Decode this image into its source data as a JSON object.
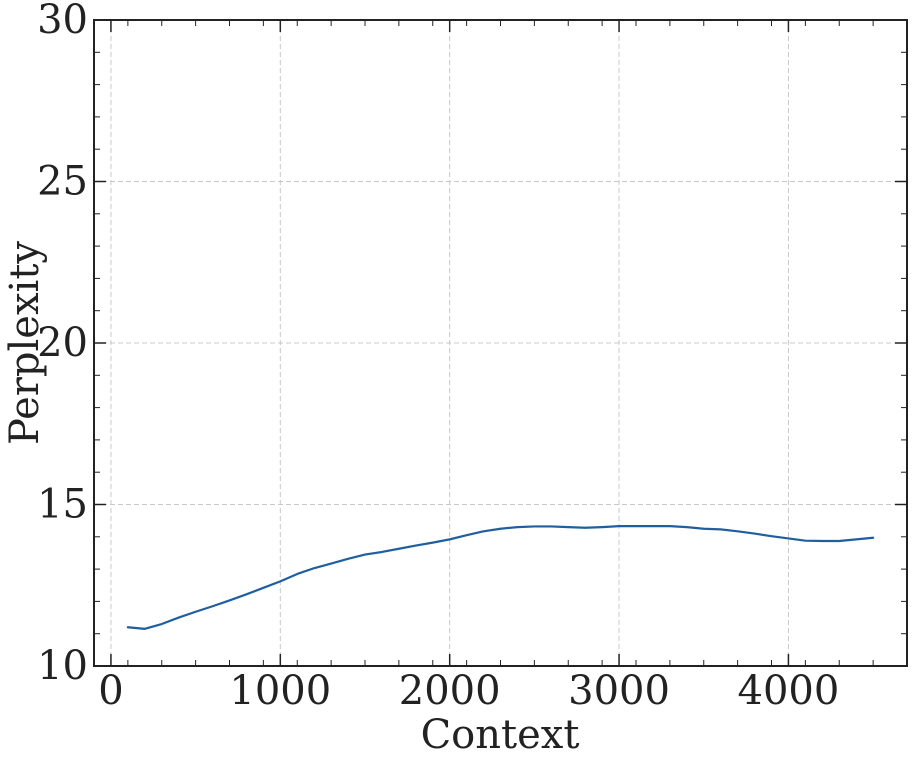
{
  "chart_data": {
    "type": "line",
    "xlabel": "Context",
    "ylabel": "Perplexity",
    "xlim": [
      -100,
      4700
    ],
    "ylim": [
      10,
      30
    ],
    "xticks": [
      0,
      1000,
      2000,
      3000,
      4000
    ],
    "yticks": [
      10,
      15,
      20,
      25,
      30
    ],
    "xtick_labels": [
      "0",
      "1000",
      "2000",
      "3000",
      "4000"
    ],
    "ytick_labels": [
      "10",
      "15",
      "20",
      "25",
      "30"
    ],
    "grid": true,
    "series": [
      {
        "color": "#1f5fa0",
        "x": [
          100,
          200,
          300,
          400,
          500,
          600,
          700,
          800,
          900,
          1000,
          1100,
          1200,
          1300,
          1400,
          1500,
          1600,
          1700,
          1800,
          1900,
          2000,
          2100,
          2200,
          2300,
          2400,
          2500,
          2600,
          2700,
          2800,
          2900,
          3000,
          3100,
          3200,
          3300,
          3400,
          3500,
          3600,
          3700,
          3800,
          3900,
          4000,
          4100,
          4200,
          4300,
          4400,
          4500
        ],
        "y": [
          11.2,
          11.15,
          11.3,
          11.5,
          11.68,
          11.85,
          12.03,
          12.22,
          12.42,
          12.62,
          12.85,
          13.03,
          13.17,
          13.32,
          13.45,
          13.53,
          13.63,
          13.73,
          13.82,
          13.92,
          14.05,
          14.17,
          14.25,
          14.3,
          14.32,
          14.32,
          14.3,
          14.28,
          14.3,
          14.33,
          14.33,
          14.33,
          14.33,
          14.3,
          14.25,
          14.23,
          14.17,
          14.1,
          14.02,
          13.95,
          13.88,
          13.87,
          13.87,
          13.92,
          13.97
        ]
      }
    ]
  }
}
